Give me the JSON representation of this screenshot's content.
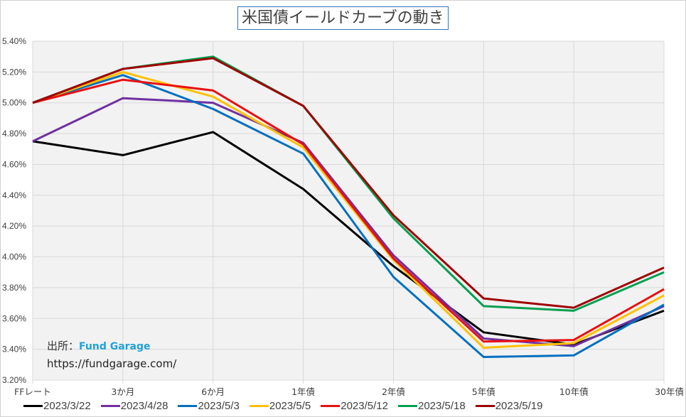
{
  "chart_data": {
    "type": "line",
    "title": "米国債イールドカーブの動き",
    "xlabel": "",
    "ylabel": "",
    "categories": [
      "FFレート",
      "3か月",
      "6か月",
      "1年債",
      "2年債",
      "5年債",
      "10年債",
      "30年債"
    ],
    "ylim": [
      3.2,
      5.4
    ],
    "yticks": [
      "3.20%",
      "3.40%",
      "3.60%",
      "3.80%",
      "4.00%",
      "4.20%",
      "4.40%",
      "4.60%",
      "4.80%",
      "5.00%",
      "5.20%",
      "5.40%"
    ],
    "ytick_values": [
      3.2,
      3.4,
      3.6,
      3.8,
      4.0,
      4.2,
      4.4,
      4.6,
      4.8,
      5.0,
      5.2,
      5.4
    ],
    "grid": true,
    "legend_position": "bottom",
    "series": [
      {
        "name": "2023/3/22",
        "color": "#000000",
        "values": [
          4.75,
          4.66,
          4.81,
          4.44,
          3.94,
          3.51,
          3.43,
          3.65
        ]
      },
      {
        "name": "2023/4/28",
        "color": "#7030a0",
        "values": [
          4.75,
          5.03,
          5.0,
          4.74,
          4.01,
          3.47,
          3.42,
          3.68
        ]
      },
      {
        "name": "2023/5/3",
        "color": "#0070c0",
        "values": [
          5.0,
          5.18,
          4.96,
          4.67,
          3.87,
          3.35,
          3.36,
          3.69
        ]
      },
      {
        "name": "2023/5/5",
        "color": "#ffc000",
        "values": [
          5.0,
          5.2,
          5.04,
          4.71,
          3.98,
          3.41,
          3.44,
          3.75
        ]
      },
      {
        "name": "2023/5/12",
        "color": "#e81010",
        "values": [
          5.0,
          5.15,
          5.08,
          4.73,
          3.99,
          3.45,
          3.46,
          3.79
        ]
      },
      {
        "name": "2023/5/18",
        "color": "#00a050",
        "values": [
          5.0,
          5.22,
          5.3,
          4.98,
          4.25,
          3.68,
          3.65,
          3.9
        ]
      },
      {
        "name": "2023/5/19",
        "color": "#a00000",
        "values": [
          5.0,
          5.22,
          5.29,
          4.98,
          4.27,
          3.73,
          3.67,
          3.93
        ]
      }
    ]
  },
  "source": {
    "label": "出所：",
    "brand": "Fund Garage",
    "url": "https://fundgarage.com/"
  },
  "colors": {
    "plot_bg": "#f2f2f2",
    "grid": "#d9d9d9",
    "title_border": "#2e75b6",
    "brand": "#1fa1dc"
  }
}
